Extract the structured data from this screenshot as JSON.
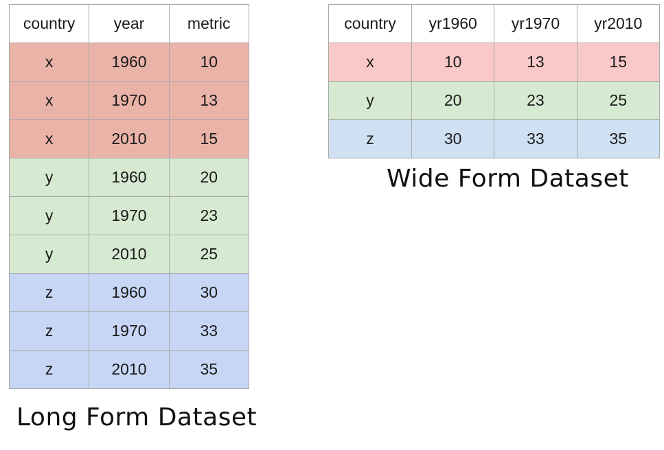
{
  "colors": {
    "x_long": "#eab3a8",
    "y_long": "#d6ead2",
    "z_long": "#c8d6f6",
    "x_wide": "#f8c9c8",
    "y_wide": "#d6ead2",
    "z_wide": "#cfe0f3",
    "border": "#a9a9a9"
  },
  "long_table": {
    "caption": "Long Form Dataset",
    "headers": [
      "country",
      "year",
      "metric"
    ],
    "rows": [
      {
        "group": "x",
        "cells": [
          "x",
          "1960",
          "10"
        ]
      },
      {
        "group": "x",
        "cells": [
          "x",
          "1970",
          "13"
        ]
      },
      {
        "group": "x",
        "cells": [
          "x",
          "2010",
          "15"
        ]
      },
      {
        "group": "y",
        "cells": [
          "y",
          "1960",
          "20"
        ]
      },
      {
        "group": "y",
        "cells": [
          "y",
          "1970",
          "23"
        ]
      },
      {
        "group": "y",
        "cells": [
          "y",
          "2010",
          "25"
        ]
      },
      {
        "group": "z",
        "cells": [
          "z",
          "1960",
          "30"
        ]
      },
      {
        "group": "z",
        "cells": [
          "z",
          "1970",
          "33"
        ]
      },
      {
        "group": "z",
        "cells": [
          "z",
          "2010",
          "35"
        ]
      }
    ]
  },
  "wide_table": {
    "caption": "Wide Form Dataset",
    "headers": [
      "country",
      "yr1960",
      "yr1970",
      "yr2010"
    ],
    "rows": [
      {
        "group": "x",
        "cells": [
          "x",
          "10",
          "13",
          "15"
        ]
      },
      {
        "group": "y",
        "cells": [
          "y",
          "20",
          "23",
          "25"
        ]
      },
      {
        "group": "z",
        "cells": [
          "z",
          "30",
          "33",
          "35"
        ]
      }
    ]
  }
}
